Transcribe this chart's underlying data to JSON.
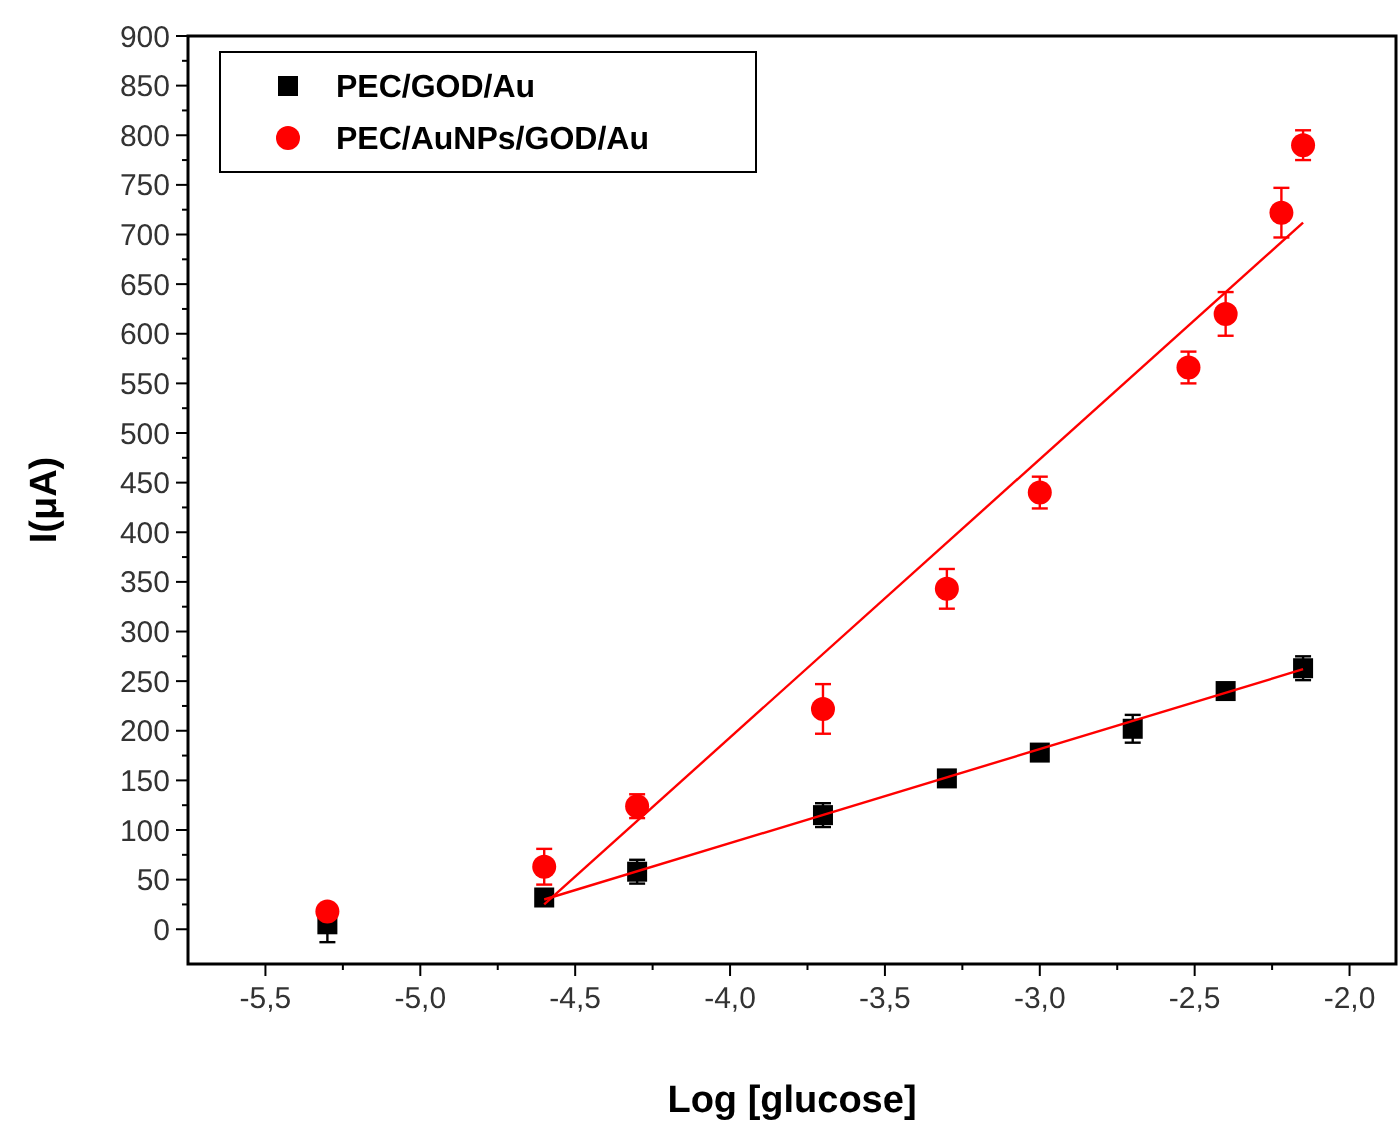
{
  "chart_data": {
    "type": "scatter",
    "xlabel": "Log [glucose]",
    "ylabel": "I(μA)",
    "xlim": [
      -5.75,
      -1.85
    ],
    "ylim": [
      -35,
      900
    ],
    "xticks": [
      {
        "value": -5.5,
        "label": "-5,5"
      },
      {
        "value": -5.25,
        "label": null
      },
      {
        "value": -5.0,
        "label": "-5,0"
      },
      {
        "value": -4.75,
        "label": null
      },
      {
        "value": -4.5,
        "label": "-4,5"
      },
      {
        "value": -4.25,
        "label": null
      },
      {
        "value": -4.0,
        "label": "-4,0"
      },
      {
        "value": -3.75,
        "label": null
      },
      {
        "value": -3.5,
        "label": "-3,5"
      },
      {
        "value": -3.25,
        "label": null
      },
      {
        "value": -3.0,
        "label": "-3,0"
      },
      {
        "value": -2.75,
        "label": null
      },
      {
        "value": -2.5,
        "label": "-2,5"
      },
      {
        "value": -2.25,
        "label": null
      },
      {
        "value": -2.0,
        "label": "-2,0"
      }
    ],
    "yticks": [
      0,
      {
        "value": 25,
        "label": null
      },
      50,
      {
        "value": 75,
        "label": null
      },
      100,
      {
        "value": 125,
        "label": null
      },
      150,
      {
        "value": 175,
        "label": null
      },
      200,
      {
        "value": 225,
        "label": null
      },
      250,
      {
        "value": 275,
        "label": null
      },
      300,
      {
        "value": 325,
        "label": null
      },
      350,
      {
        "value": 375,
        "label": null
      },
      400,
      {
        "value": 425,
        "label": null
      },
      450,
      {
        "value": 475,
        "label": null
      },
      500,
      {
        "value": 525,
        "label": null
      },
      550,
      {
        "value": 575,
        "label": null
      },
      600,
      {
        "value": 625,
        "label": null
      },
      650,
      {
        "value": 675,
        "label": null
      },
      700,
      {
        "value": 725,
        "label": null
      },
      750,
      {
        "value": 775,
        "label": null
      },
      800,
      {
        "value": 825,
        "label": null
      },
      850,
      {
        "value": 875,
        "label": null
      },
      900
    ],
    "grid": false,
    "legend": "top left",
    "series": [
      {
        "name": "PEC/GOD/Au",
        "color": "#000000",
        "marker": "square",
        "x": [
          -5.3,
          -4.6,
          -4.3,
          -3.7,
          -3.3,
          -3.0,
          -2.7,
          -2.4,
          -2.15
        ],
        "values": [
          5,
          32,
          58,
          115,
          152,
          178,
          202,
          240,
          263
        ],
        "errors": [
          18,
          6,
          12,
          12,
          5,
          5,
          14,
          6,
          12
        ]
      },
      {
        "name": "PEC/AuNPs/GOD/Au",
        "color": "#ff0000",
        "marker": "circle",
        "x": [
          -5.3,
          -4.6,
          -4.3,
          -3.7,
          -3.3,
          -3.0,
          -2.52,
          -2.4,
          -2.22,
          -2.15
        ],
        "values": [
          18,
          63,
          124,
          222,
          343,
          440,
          566,
          620,
          722,
          790
        ],
        "errors": [
          6,
          18,
          12,
          25,
          20,
          16,
          16,
          22,
          25,
          15
        ]
      },
      {
        "type": "line",
        "color": "#ff0000",
        "x": [
          -4.6,
          -2.15
        ],
        "values": [
          30,
          262
        ]
      },
      {
        "type": "line",
        "color": "#ff0000",
        "x": [
          -4.6,
          -2.15
        ],
        "values": [
          25,
          712
        ]
      }
    ]
  }
}
